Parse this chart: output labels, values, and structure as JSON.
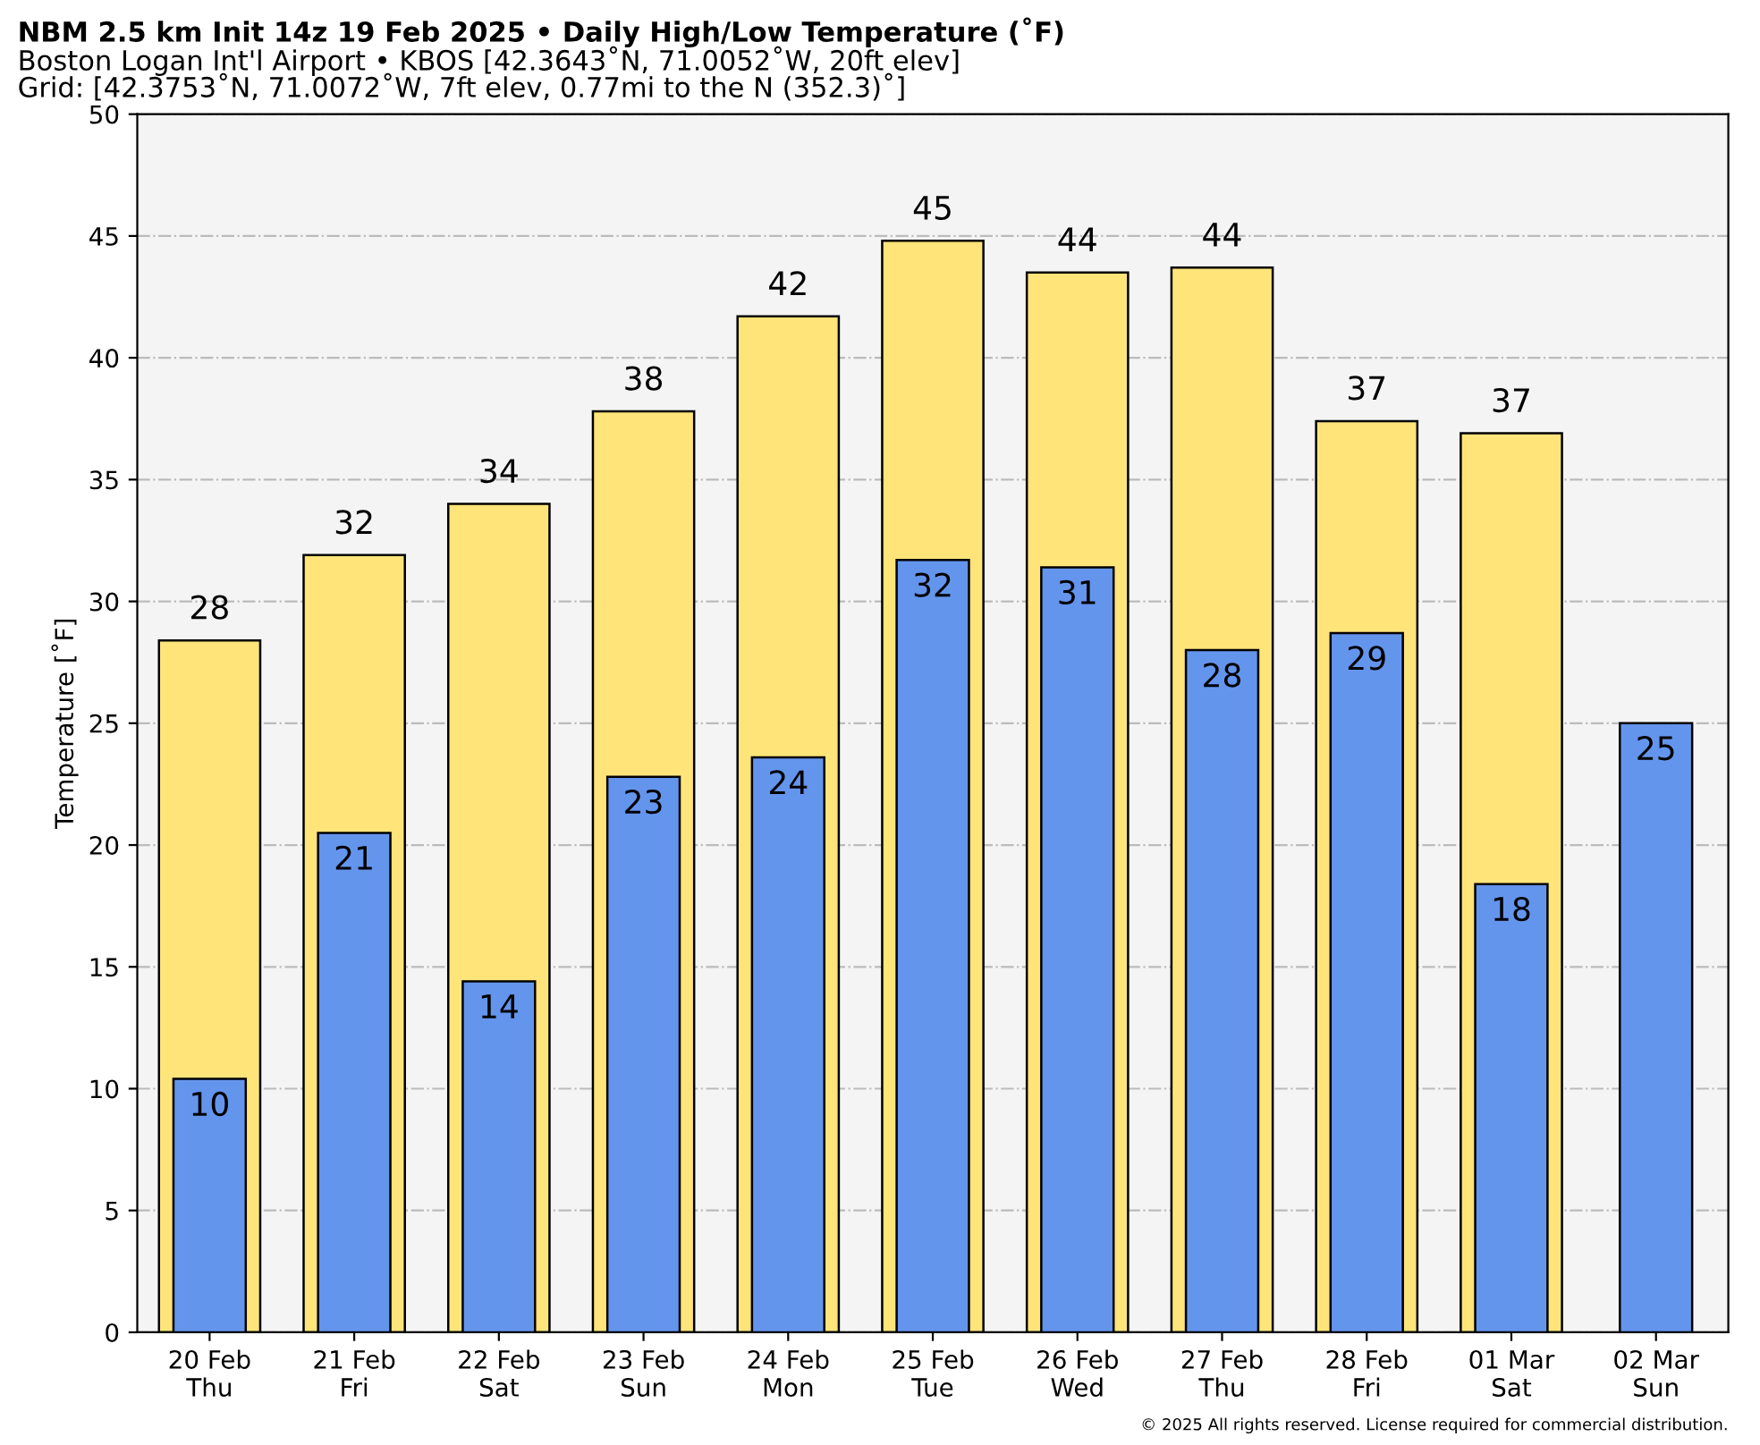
{
  "chart_data": {
    "type": "bar",
    "title": "NBM 2.5 km Init 14z 19 Feb 2025 • Daily High/Low Temperature (˚F)",
    "subtitle": "Boston Logan Int'l Airport • KBOS [42.3643˚N, 71.0052˚W, 20ft elev]",
    "annotations": [
      "Grid: [42.3753˚N, 71.0072˚W, 7ft elev, 0.77mi to the N (352.3)˚]",
      "© 2025 All rights reserved. License required for commercial distribution."
    ],
    "ylabel": "Temperature [˚F]",
    "categories": [
      "20 Feb\nThu",
      "21 Feb\nFri",
      "22 Feb\nSat",
      "23 Feb\nSun",
      "24 Feb\nMon",
      "25 Feb\nTue",
      "26 Feb\nWed",
      "27 Feb\nThu",
      "28 Feb\nFri",
      "01 Mar\nSat",
      "02 Mar\nSun"
    ],
    "series": [
      {
        "color": "#ffe47a",
        "values": [
          28.4,
          31.9,
          34.0,
          37.8,
          41.7,
          44.8,
          43.5,
          43.7,
          37.4,
          36.9,
          null
        ],
        "value_labels": [
          "28",
          "32",
          "34",
          "38",
          "42",
          "45",
          "44",
          "44",
          "37",
          "37",
          null
        ]
      },
      {
        "color": "#6495ed",
        "values": [
          10.4,
          20.5,
          14.4,
          22.8,
          23.6,
          31.7,
          31.4,
          28.0,
          28.7,
          18.4,
          25.0
        ],
        "value_labels": [
          "10",
          "21",
          "14",
          "23",
          "24",
          "32",
          "31",
          "28",
          "29",
          "18",
          "25"
        ]
      }
    ],
    "ylim": [
      0,
      50
    ],
    "yticks": [
      0,
      5,
      10,
      15,
      20,
      25,
      30,
      35,
      40,
      45,
      50
    ],
    "grid": "y",
    "legend": false
  }
}
